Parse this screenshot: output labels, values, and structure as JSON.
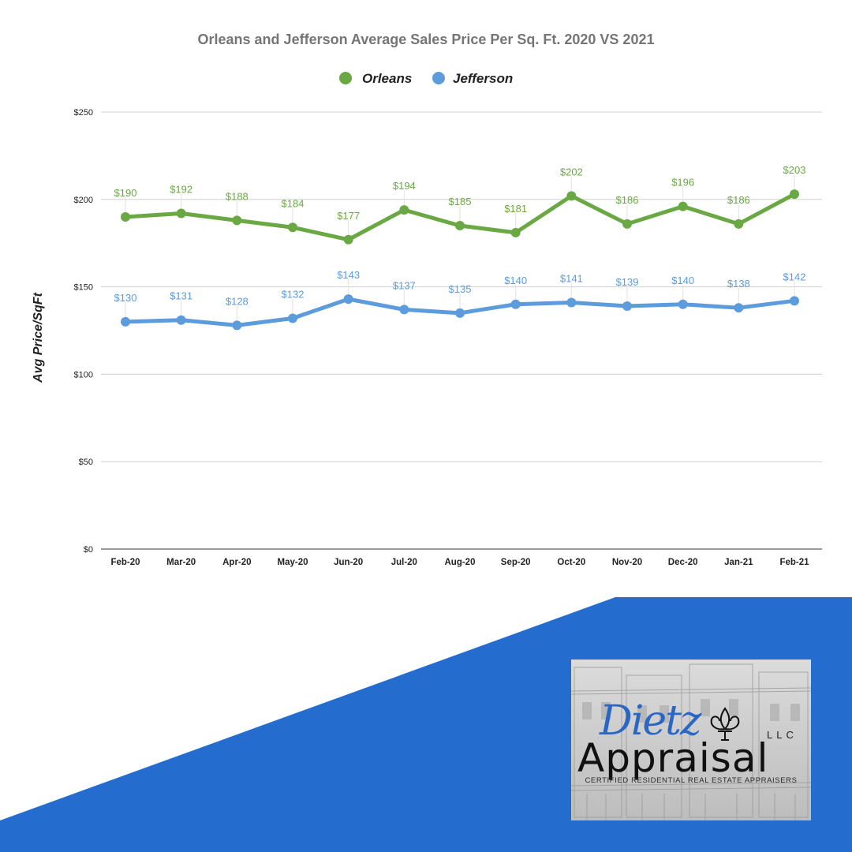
{
  "chart_data": {
    "type": "line",
    "title": "Orleans and Jefferson Average Sales Price Per Sq. Ft. 2020 VS 2021",
    "xlabel": "",
    "ylabel": "Avg Price/SqFt",
    "categories": [
      "Feb-20",
      "Mar-20",
      "Apr-20",
      "May-20",
      "Jun-20",
      "Jul-20",
      "Aug-20",
      "Sep-20",
      "Oct-20",
      "Nov-20",
      "Dec-20",
      "Jan-21",
      "Feb-21"
    ],
    "ylim": [
      0,
      250
    ],
    "yticks": [
      0,
      50,
      100,
      150,
      200,
      250
    ],
    "ytick_labels": [
      "$0",
      "$50",
      "$100",
      "$150",
      "$200",
      "$250"
    ],
    "grid": true,
    "legend_position": "top-center",
    "series": [
      {
        "name": "Orleans",
        "color": "#6aa844",
        "values": [
          190,
          192,
          188,
          184,
          177,
          194,
          185,
          181,
          202,
          186,
          196,
          186,
          203
        ],
        "labels": [
          "$190",
          "$192",
          "$188",
          "$184",
          "$177",
          "$194",
          "$185",
          "$181",
          "$202",
          "$186",
          "$196",
          "$186",
          "$203"
        ]
      },
      {
        "name": "Jefferson",
        "color": "#5c9bdc",
        "values": [
          130,
          131,
          128,
          132,
          143,
          137,
          135,
          140,
          141,
          139,
          140,
          138,
          142
        ],
        "labels": [
          "$130",
          "$131",
          "$128",
          "$132",
          "$143",
          "$137",
          "$135",
          "$140",
          "$141",
          "$139",
          "$140",
          "$138",
          "$142"
        ]
      }
    ]
  },
  "banner": {
    "color": "#246dcf"
  },
  "logo": {
    "script_text": "Dietz",
    "llc_text": "LLC",
    "main_text": "Appraisal",
    "tagline": "CERTIFIED RESIDENTIAL REAL ESTATE APPRAISERS"
  }
}
